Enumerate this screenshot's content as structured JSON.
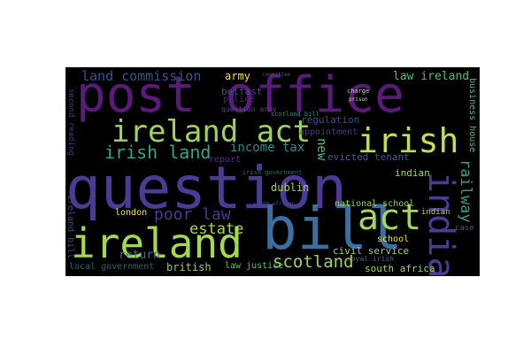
{
  "palette": {
    "background": "#000000",
    "page": "#ffffff",
    "purple": "#5a1a7a",
    "dark_purple": "#4a1466",
    "violet": "#4c3a94",
    "slate": "#3f4f8c",
    "blue": "#3b5f91",
    "teal": "#2a8a8e",
    "teal_dark": "#22687a",
    "green": "#55c36b",
    "lime": "#a8d94a",
    "light_green": "#8fd24e",
    "yellow": "#f2e23b"
  },
  "words": [
    {
      "text": "post office",
      "color": "#5a1a7a"
    },
    {
      "text": "question",
      "color": "#4c3a94"
    },
    {
      "text": "ireland act",
      "color": "#9fd45a"
    },
    {
      "text": "irish",
      "color": "#c2e04a"
    },
    {
      "text": "bill",
      "color": "#3b6fa0"
    },
    {
      "text": "ireland",
      "color": "#a6d84c"
    },
    {
      "text": "act",
      "color": "#a4d94b"
    },
    {
      "text": "india",
      "color": "#4c3a94"
    },
    {
      "text": "irish land",
      "color": "#3aa08c"
    },
    {
      "text": "poor law",
      "color": "#4c3a94"
    },
    {
      "text": "estate",
      "color": "#a6d84c"
    },
    {
      "text": "scotland",
      "color": "#9fd45a"
    },
    {
      "text": "railway",
      "color": "#2fa08b"
    },
    {
      "text": "land commission",
      "color": "#3f4f8c"
    },
    {
      "text": "law ireland",
      "color": "#4fbf79"
    },
    {
      "text": "army",
      "color": "#f2e23b"
    },
    {
      "text": "income tax",
      "color": "#2a8a8e"
    },
    {
      "text": "belfast",
      "color": "#3f4f8c"
    },
    {
      "text": "police",
      "color": "#4a2a7a"
    },
    {
      "text": "question army",
      "color": "#3f4f8c"
    },
    {
      "text": "regulation",
      "color": "#3f4f8c"
    },
    {
      "text": "appointment",
      "color": "#4c3a94"
    },
    {
      "text": "evicted tenant",
      "color": "#3b5f91"
    },
    {
      "text": "indian",
      "color": "#a6d84c"
    },
    {
      "text": "dublin",
      "color": "#9fd45a"
    },
    {
      "text": "new",
      "color": "#4fbf79"
    },
    {
      "text": "report",
      "color": "#5a2a8a"
    },
    {
      "text": "business house",
      "color": "#4fbf79"
    },
    {
      "text": "national school",
      "color": "#9fd45a"
    },
    {
      "text": "civil service",
      "color": "#9fd45a"
    },
    {
      "text": "return",
      "color": "#3b6fa0"
    },
    {
      "text": "london",
      "color": "#f2e23b"
    },
    {
      "text": "school",
      "color": "#f2e23b"
    },
    {
      "text": "british",
      "color": "#8fd24e"
    },
    {
      "text": "law justice",
      "color": "#55c36b"
    },
    {
      "text": "south africa",
      "color": "#a6d84c"
    },
    {
      "text": "local government",
      "color": "#22687a"
    },
    {
      "text": "royal irish",
      "color": "#5a5a9a"
    },
    {
      "text": "case",
      "color": "#3b5f91"
    },
    {
      "text": "ireland bill",
      "color": "#3f4f8c"
    },
    {
      "text": "second reading",
      "color": "#3b3f6a"
    },
    {
      "text": "charge",
      "color": "#d0d0d0"
    },
    {
      "text": "scotland bill",
      "color": "#2a8a8e"
    },
    {
      "text": "irish government",
      "color": "#22687a"
    },
    {
      "text": "south african",
      "color": "#3f4f8c"
    },
    {
      "text": "prison",
      "color": "#d0d0d0"
    },
    {
      "text": "committee",
      "color": "#555555"
    },
    {
      "text": "indian",
      "color": "#a6d84c"
    }
  ]
}
